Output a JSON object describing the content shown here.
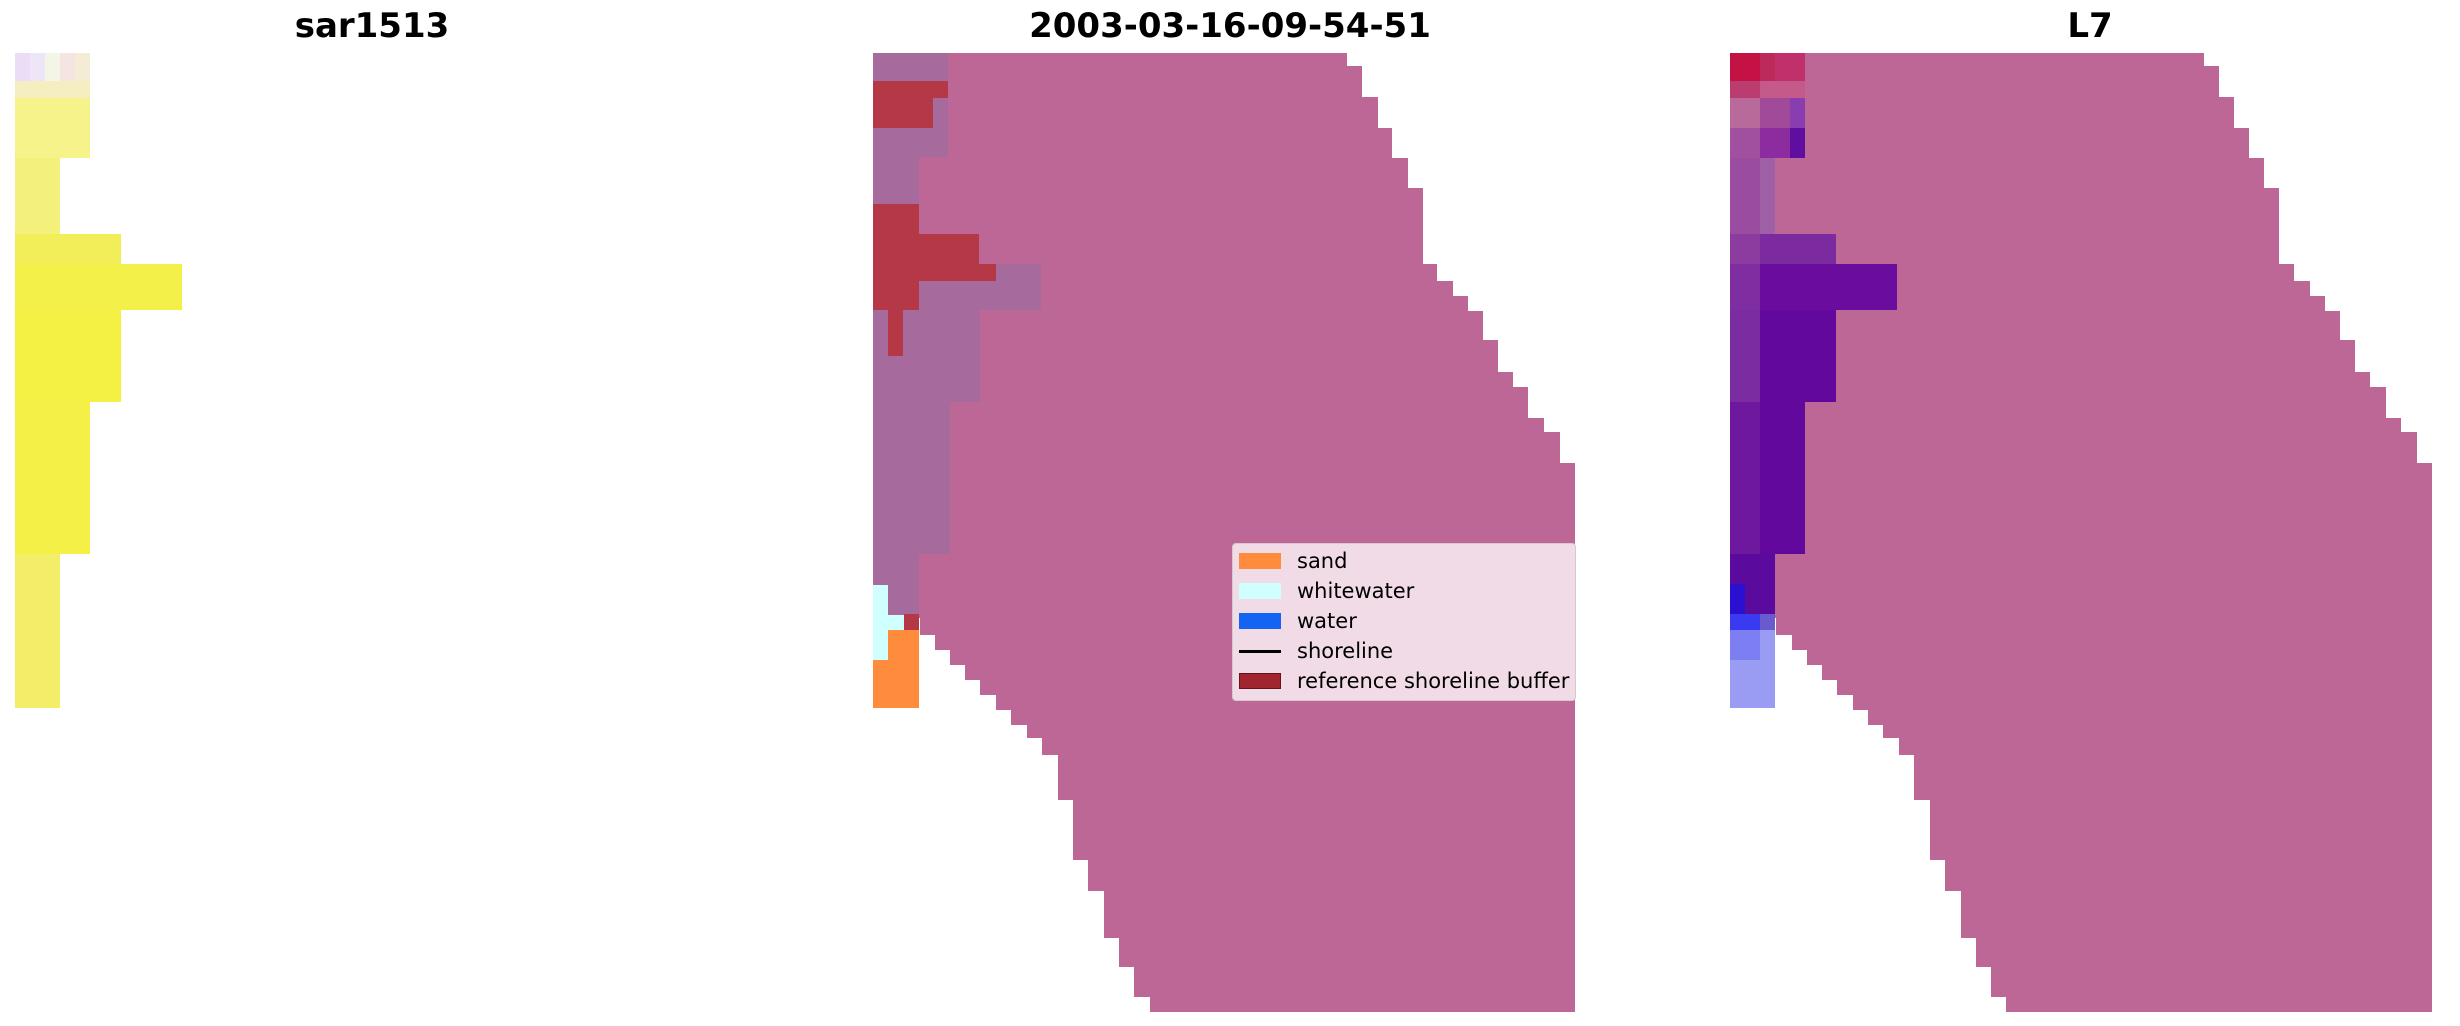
{
  "panels": [
    {
      "title": "sar1513"
    },
    {
      "title": "2003-03-16-09-54-51"
    },
    {
      "title": "L7"
    }
  ],
  "legend": [
    {
      "label": "sand",
      "color": "#FF8C3C",
      "kind": "patch"
    },
    {
      "label": "whitewater",
      "color": "#D0FFFF",
      "kind": "patch"
    },
    {
      "label": "water",
      "color": "#1464F4",
      "kind": "patch"
    },
    {
      "label": "shoreline",
      "color": "#000000",
      "kind": "line"
    },
    {
      "label": "reference shoreline buffer",
      "color": "#A1252F",
      "kind": "patch"
    }
  ],
  "colors": {
    "mask_pink": "#BC6796",
    "classified_violet": "#A66A9C",
    "buffer_red": "#B53846",
    "rgb_yellow": "#F5F044",
    "index_purple": "#6A0D9E",
    "index_red": "#C41244",
    "index_blue_light": "#9A9CF4"
  }
}
